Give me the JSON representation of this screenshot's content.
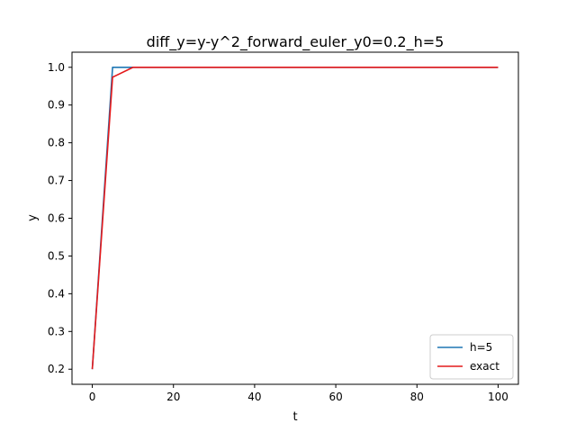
{
  "chart_data": {
    "type": "line",
    "title": "diff_y=y-y^2_forward_euler_y0=0.2_h=5",
    "xlabel": "t",
    "ylabel": "y",
    "xlim": [
      -5,
      105
    ],
    "ylim": [
      0.16,
      1.04
    ],
    "x_ticks": [
      0,
      20,
      40,
      60,
      80,
      100
    ],
    "y_ticks": [
      0.2,
      0.3,
      0.4,
      0.5,
      0.6,
      0.7,
      0.8,
      0.9,
      1.0
    ],
    "x_tick_labels": [
      "0",
      "20",
      "40",
      "60",
      "80",
      "100"
    ],
    "y_tick_labels": [
      "0.2",
      "0.3",
      "0.4",
      "0.5",
      "0.6",
      "0.7",
      "0.8",
      "0.9",
      "1.0"
    ],
    "grid": false,
    "legend_position": "lower-right",
    "series": [
      {
        "name": "h=5",
        "color": "#1f77b4",
        "x": [
          0,
          5,
          10,
          15,
          20,
          25,
          30,
          35,
          40,
          45,
          50,
          55,
          60,
          65,
          70,
          75,
          80,
          85,
          90,
          95,
          100
        ],
        "y": [
          0.2,
          1.0,
          1.0,
          1.0,
          1.0,
          1.0,
          1.0,
          1.0,
          1.0,
          1.0,
          1.0,
          1.0,
          1.0,
          1.0,
          1.0,
          1.0,
          1.0,
          1.0,
          1.0,
          1.0,
          1.0
        ]
      },
      {
        "name": "exact",
        "color": "#e41a1c",
        "x": [
          0,
          5,
          10,
          15,
          20,
          25,
          30,
          35,
          40,
          45,
          50,
          55,
          60,
          65,
          70,
          75,
          80,
          85,
          90,
          95,
          100
        ],
        "y": [
          0.2,
          0.9738,
          0.9998,
          1.0,
          1.0,
          1.0,
          1.0,
          1.0,
          1.0,
          1.0,
          1.0,
          1.0,
          1.0,
          1.0,
          1.0,
          1.0,
          1.0,
          1.0,
          1.0,
          1.0,
          1.0
        ]
      }
    ]
  }
}
